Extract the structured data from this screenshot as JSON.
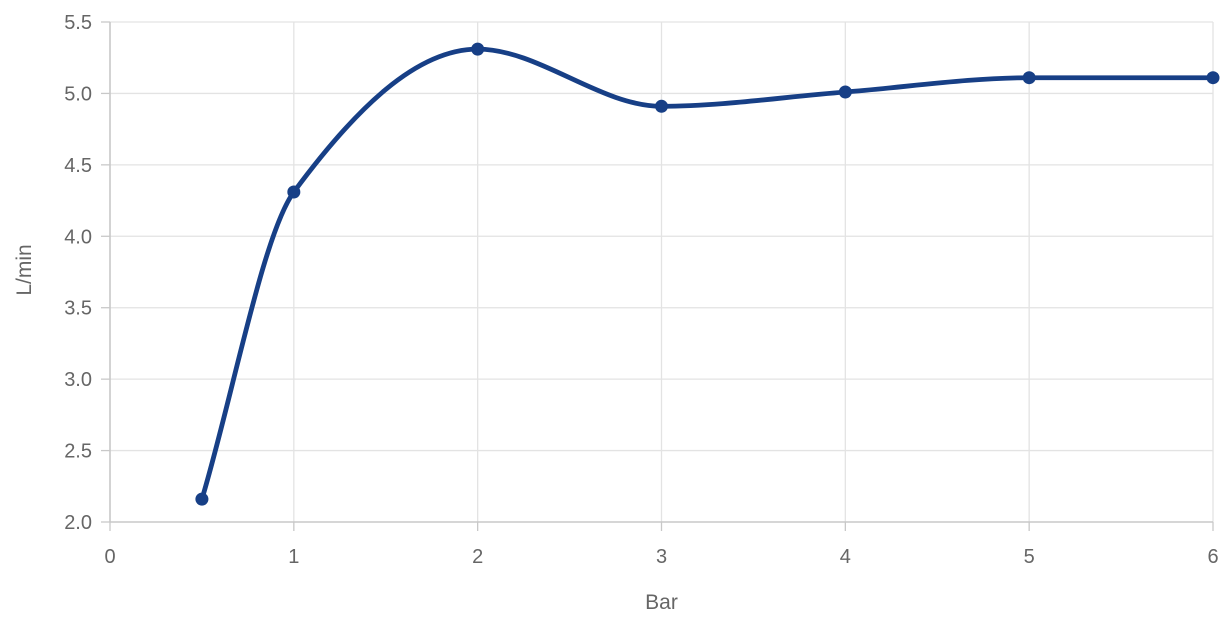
{
  "chart_data": {
    "type": "line",
    "title": "",
    "xlabel": "Bar",
    "ylabel": "L/min",
    "xlim": [
      0,
      6
    ],
    "ylim": [
      2.0,
      5.5
    ],
    "x_ticks": [
      "0",
      "1",
      "2",
      "3",
      "4",
      "5",
      "6"
    ],
    "y_ticks": [
      "2.0",
      "2.5",
      "3.0",
      "3.5",
      "4.0",
      "4.5",
      "5.0",
      "5.5"
    ],
    "grid": true,
    "smooth": true,
    "series": [
      {
        "color": "#173f86",
        "points": [
          {
            "x": 0.5,
            "y": 2.16
          },
          {
            "x": 1,
            "y": 4.31
          },
          {
            "x": 2,
            "y": 5.31
          },
          {
            "x": 3,
            "y": 4.91
          },
          {
            "x": 4,
            "y": 5.01
          },
          {
            "x": 5,
            "y": 5.11
          },
          {
            "x": 6,
            "y": 5.11
          }
        ]
      }
    ]
  }
}
